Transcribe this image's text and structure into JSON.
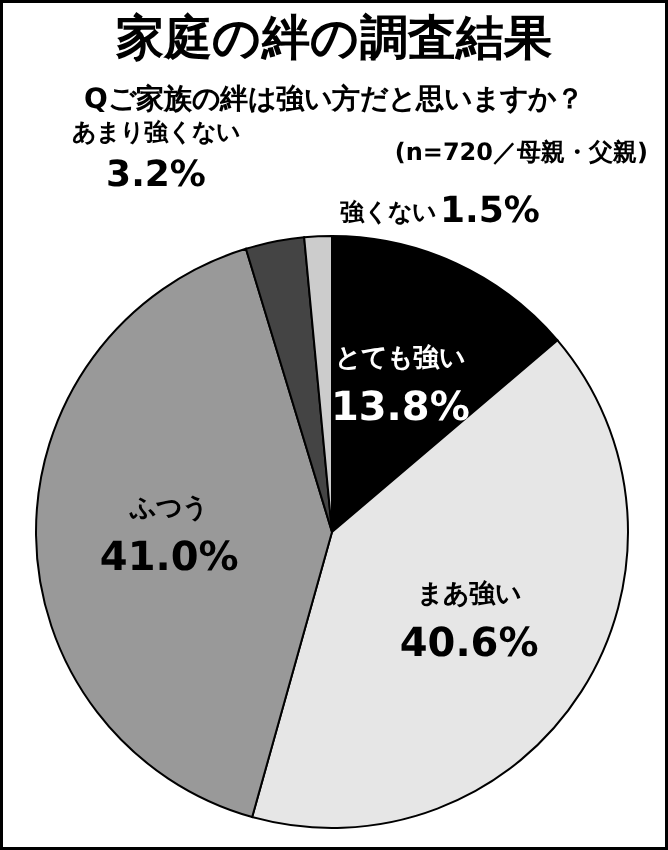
{
  "chart_data": {
    "type": "pie",
    "title": "家庭の絆の調査結果",
    "subtitle": "Qご家族の絆は強い方だと思いますか？",
    "annotations": [
      "(n=720／母親・父親)"
    ],
    "categories": [
      "とても強い",
      "まあ強い",
      "ふつう",
      "あまり強くない",
      "強くない"
    ],
    "values": [
      13.8,
      40.6,
      41.0,
      3.2,
      1.5
    ],
    "colors": [
      "#000000",
      "#e6e6e6",
      "#999999",
      "#444444",
      "#cccccc"
    ],
    "value_labels": [
      "13.8%",
      "40.6%",
      "41.0%",
      "3.2%",
      "1.5%"
    ]
  }
}
